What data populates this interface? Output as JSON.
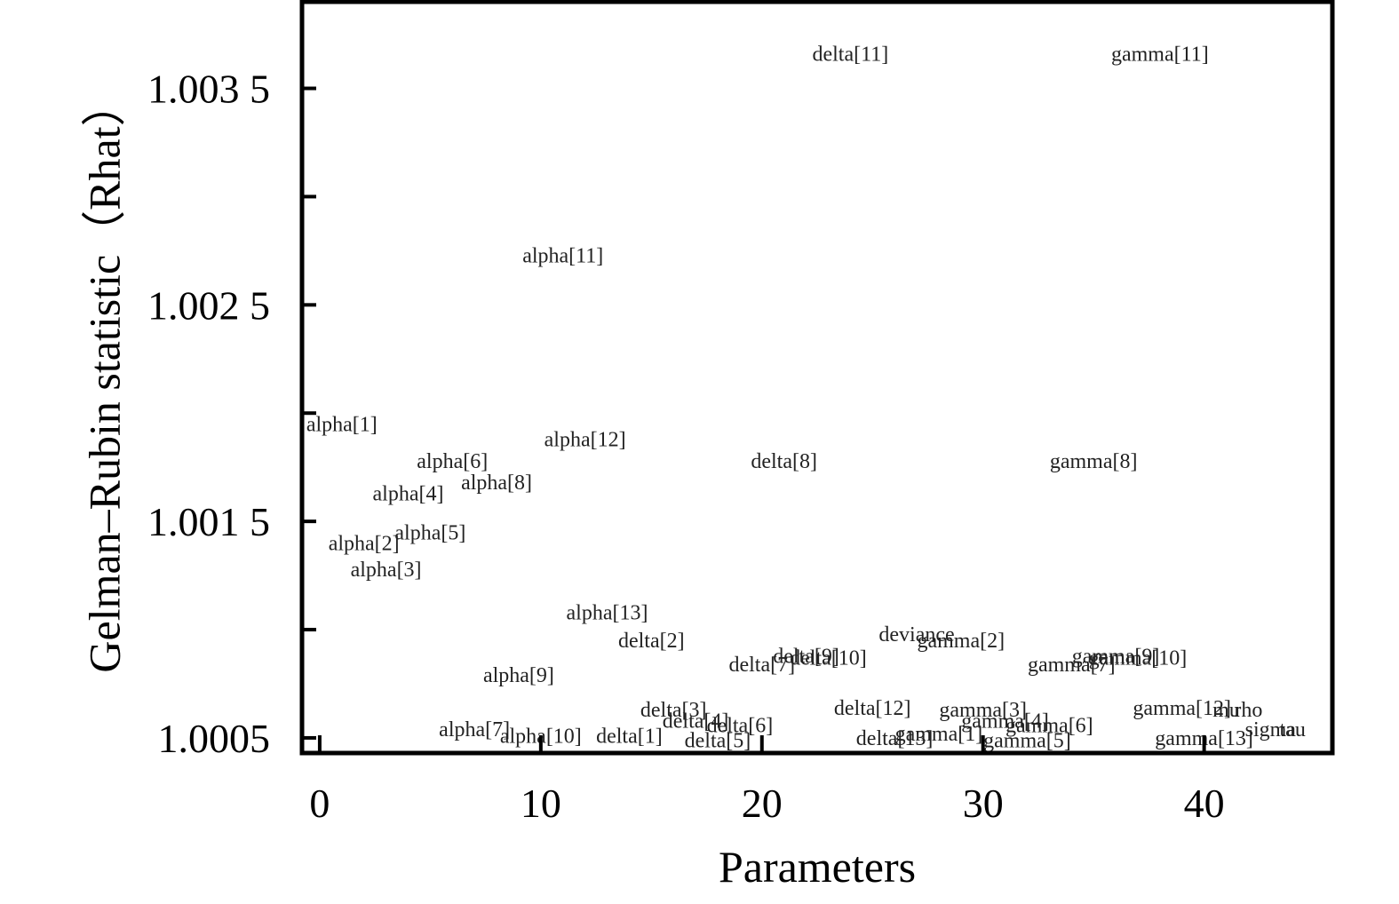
{
  "chart_data": {
    "type": "scatter",
    "marker": "text-label",
    "title": "",
    "xlabel": "Parameters",
    "ylabel": "Gelman–Rubin statistic（Rhat）",
    "xlim": [
      -0.8,
      45.8
    ],
    "ylim": [
      1.00043,
      1.0039
    ],
    "xticks": [
      0,
      10,
      20,
      30,
      40
    ],
    "xtick_labels": [
      "0",
      "10",
      "20",
      "30",
      "40"
    ],
    "yticks": [
      1.0005,
      1.001,
      1.0015,
      1.002,
      1.0025,
      1.003,
      1.0035
    ],
    "ytick_labels": [
      "1.0005",
      "",
      "1.001 5",
      "",
      "1.002 5",
      "",
      "1.003 5"
    ],
    "grid": false,
    "legend": "none",
    "points": [
      {
        "label": "alpha[1]",
        "x": 1,
        "y": 1.00195
      },
      {
        "label": "alpha[2]",
        "x": 2,
        "y": 1.0014
      },
      {
        "label": "alpha[3]",
        "x": 3,
        "y": 1.00128
      },
      {
        "label": "alpha[4]",
        "x": 4,
        "y": 1.00163
      },
      {
        "label": "alpha[5]",
        "x": 5,
        "y": 1.00145
      },
      {
        "label": "alpha[6]",
        "x": 6,
        "y": 1.00178
      },
      {
        "label": "alpha[7]",
        "x": 7,
        "y": 1.00054
      },
      {
        "label": "alpha[8]",
        "x": 8,
        "y": 1.00168
      },
      {
        "label": "alpha[9]",
        "x": 9,
        "y": 1.00079
      },
      {
        "label": "alpha[10]",
        "x": 10,
        "y": 1.00051
      },
      {
        "label": "alpha[11]",
        "x": 11,
        "y": 1.00273
      },
      {
        "label": "alpha[12]",
        "x": 12,
        "y": 1.00188
      },
      {
        "label": "alpha[13]",
        "x": 13,
        "y": 1.00108
      },
      {
        "label": "delta[1]",
        "x": 14,
        "y": 1.00051
      },
      {
        "label": "delta[2]",
        "x": 15,
        "y": 1.00095
      },
      {
        "label": "delta[3]",
        "x": 16,
        "y": 1.00063
      },
      {
        "label": "delta[4]",
        "x": 17,
        "y": 1.00058
      },
      {
        "label": "delta[5]",
        "x": 18,
        "y": 1.00049
      },
      {
        "label": "delta[6]",
        "x": 19,
        "y": 1.00056
      },
      {
        "label": "delta[7]",
        "x": 20,
        "y": 1.00084
      },
      {
        "label": "delta[8]",
        "x": 21,
        "y": 1.00178
      },
      {
        "label": "delta[9]",
        "x": 22,
        "y": 1.00088
      },
      {
        "label": "delta[10]",
        "x": 23,
        "y": 1.00087
      },
      {
        "label": "delta[11]",
        "x": 24,
        "y": 1.00366
      },
      {
        "label": "delta[12]",
        "x": 25,
        "y": 1.00064
      },
      {
        "label": "delta[13]",
        "x": 26,
        "y": 1.0005
      },
      {
        "label": "deviance",
        "x": 27,
        "y": 1.00098
      },
      {
        "label": "gamma[1]",
        "x": 28,
        "y": 1.00052
      },
      {
        "label": "gamma[2]",
        "x": 29,
        "y": 1.00095
      },
      {
        "label": "gamma[3]",
        "x": 30,
        "y": 1.00063
      },
      {
        "label": "gamma[4]",
        "x": 31,
        "y": 1.00058
      },
      {
        "label": "gamma[5]",
        "x": 32,
        "y": 1.00049
      },
      {
        "label": "gamma[6]",
        "x": 33,
        "y": 1.00056
      },
      {
        "label": "gamma[7]",
        "x": 34,
        "y": 1.00084
      },
      {
        "label": "gamma[8]",
        "x": 35,
        "y": 1.00178
      },
      {
        "label": "gamma[9]",
        "x": 36,
        "y": 1.00088
      },
      {
        "label": "gamma[10]",
        "x": 37,
        "y": 1.00087
      },
      {
        "label": "gamma[11]",
        "x": 38,
        "y": 1.00366
      },
      {
        "label": "gamma[12]",
        "x": 39,
        "y": 1.00064
      },
      {
        "label": "gamma[13]",
        "x": 40,
        "y": 1.0005
      },
      {
        "label": "mu",
        "x": 41,
        "y": 1.00063
      },
      {
        "label": "rho",
        "x": 42,
        "y": 1.00063
      },
      {
        "label": "sigma",
        "x": 43,
        "y": 1.00054
      },
      {
        "label": "tau",
        "x": 44,
        "y": 1.00054
      }
    ]
  }
}
